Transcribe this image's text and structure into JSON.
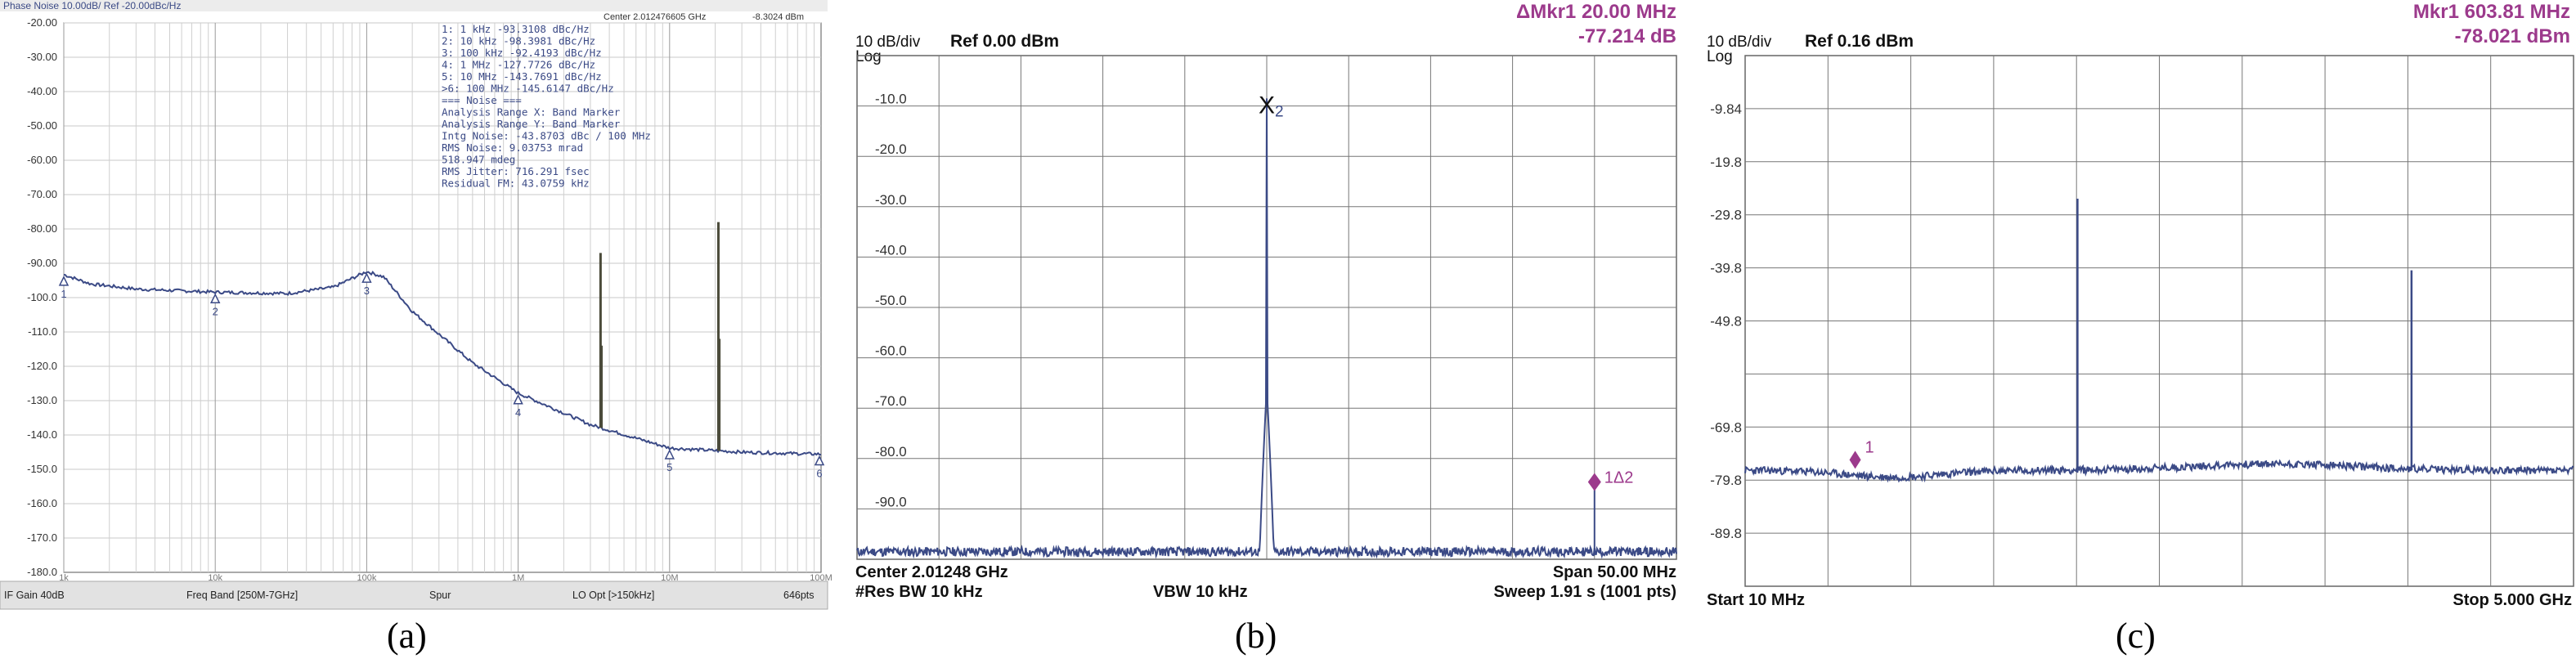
{
  "captions": [
    "(a)",
    "(b)",
    "(c)"
  ],
  "colors": {
    "trace": "#3b4a86",
    "marker_text": "#9c3a8c",
    "grid": "#777777",
    "spur": "#4b4b3a"
  },
  "panel_a": {
    "header_left": "Phase Noise 10.00dB/ Ref -20.00dBc/Hz",
    "header_center": "Center 2.012476605 GHz",
    "header_right": "-8.3024 dBm",
    "ytick_labels": [
      "-20.00",
      "-30.00",
      "-40.00",
      "-50.00",
      "-60.00",
      "-70.00",
      "-80.00",
      "-90.00",
      "-100.0",
      "-110.0",
      "-120.0",
      "-130.0",
      "-140.0",
      "-150.0",
      "-160.0",
      "-170.0",
      "-180.0"
    ],
    "xtick_labels": [
      "1k",
      "10k",
      "100k",
      "1M",
      "10M",
      "100M"
    ],
    "marker_table": [
      "1:   1 kHz      -93.3108 dBc/Hz",
      "2:   10 kHz     -98.3981 dBc/Hz",
      "3:   100 kHz    -92.4193 dBc/Hz",
      "4:   1 MHz      -127.7726 dBc/Hz",
      "5:   10 MHz     -143.7691 dBc/Hz",
      ">6:  100 MHz    -145.6147 dBc/Hz",
      "=== Noise ===",
      "Analysis Range X: Band Marker",
      "Analysis Range Y: Band Marker",
      "Intg Noise: -43.8703 dBc / 100 MHz",
      "   RMS Noise: 9.03753 mrad",
      "              518.947 mdeg",
      "RMS Jitter: 716.291 fsec",
      "Residual FM: 43.0759 kHz"
    ],
    "marker_labels": [
      "1",
      "2",
      "3",
      "4",
      "5",
      "6"
    ],
    "footer": [
      "IF Gain 40dB",
      "Freq Band [250M-7GHz]",
      "Spur",
      "LO Opt [>150kHz]",
      "646pts"
    ]
  },
  "panel_b": {
    "marker_title": "ΔMkr1 20.00 MHz",
    "marker_value": "-77.214 dB",
    "scale": "10 dB/div",
    "scale_type": "Log",
    "ref": "Ref 0.00 dBm",
    "ytick_labels": [
      "-10.0",
      "-20.0",
      "-30.0",
      "-40.0",
      "-50.0",
      "-60.0",
      "-70.0",
      "-80.0",
      "-90.0"
    ],
    "marker_x_label": "X",
    "marker_x_sub": "2",
    "marker_delta_label": "1Δ2",
    "footer_center": "Center 2.01248 GHz",
    "footer_span": "Span 50.00 MHz",
    "footer_rbw": "#Res BW 10 kHz",
    "footer_vbw": "VBW 10 kHz",
    "footer_sweep": "Sweep  1.91 s (1001 pts)"
  },
  "panel_c": {
    "marker_title": "Mkr1 603.81 MHz",
    "marker_value": "-78.021 dBm",
    "scale": "10 dB/div",
    "scale_type": "Log",
    "ref": "Ref 0.16 dBm",
    "ytick_labels": [
      "-9.84",
      "-19.8",
      "-29.8",
      "-39.8",
      "-49.8",
      "-69.8",
      "-79.8",
      "-89.8"
    ],
    "marker_label": "1",
    "footer_start": "Start 10 MHz",
    "footer_stop": "Stop 5.000 GHz"
  },
  "chart_data": [
    {
      "type": "line",
      "title": "Phase Noise 10.00dB/ Ref -20.00dBc/Hz",
      "xscale": "log",
      "xlim": [
        1000,
        100000000
      ],
      "ylim": [
        -180,
        -20
      ],
      "series": [
        {
          "x": [
            1000,
            1500,
            3000,
            10000,
            30000,
            60000,
            100000,
            130000,
            200000,
            500000,
            1000000,
            3000000,
            10000000,
            30000000,
            100000000
          ],
          "y": [
            -93.3,
            -96,
            -97.5,
            -98.4,
            -98.8,
            -97,
            -92.4,
            -94,
            -104,
            -119,
            -127.8,
            -137,
            -143.8,
            -145,
            -145.6
          ]
        }
      ],
      "spurs": [
        {
          "x": 3500000,
          "top": -87
        },
        {
          "x": 3550000,
          "top": -114
        },
        {
          "x": 21000000,
          "top": -78
        },
        {
          "x": 21300000,
          "top": -112
        }
      ],
      "markers": [
        {
          "label": "1",
          "x": 1000,
          "y": -93.3
        },
        {
          "label": "2",
          "x": 10000,
          "y": -98.4
        },
        {
          "label": "3",
          "x": 100000,
          "y": -92.4
        },
        {
          "label": "4",
          "x": 1000000,
          "y": -127.8
        },
        {
          "label": "5",
          "x": 10000000,
          "y": -143.8
        },
        {
          "label": "6",
          "x": 100000000,
          "y": -145.6
        }
      ]
    },
    {
      "type": "line",
      "title": "ΔMkr1 20.00 MHz -77.214 dB",
      "xlabel": "Center 2.01248 GHz / Span 50.00 MHz",
      "xlim": [
        -25,
        25
      ],
      "ylim": [
        -100,
        0
      ],
      "noise_floor": -98.5,
      "peaks": [
        {
          "x": 0.0,
          "y": -8.5
        },
        {
          "x": 20.0,
          "y": -85.8
        }
      ],
      "markers": [
        {
          "label": "X2",
          "x": 0.0,
          "y": -8.5
        },
        {
          "label": "1Δ2",
          "x": 20.0,
          "y": -85.8
        }
      ]
    },
    {
      "type": "line",
      "title": "Mkr1 603.81 MHz -78.021 dBm",
      "xlabel": "Start 10 MHz / Stop 5.000 GHz",
      "xlim": [
        10,
        5000
      ],
      "ylim": [
        -99.84,
        0.16
      ],
      "noise_floor": -78,
      "peaks": [
        {
          "x": 2012,
          "y": -26.8
        },
        {
          "x": 4024,
          "y": -40.3
        }
      ],
      "markers": [
        {
          "label": "1",
          "x": 603.81,
          "y": -78.021
        }
      ]
    }
  ]
}
